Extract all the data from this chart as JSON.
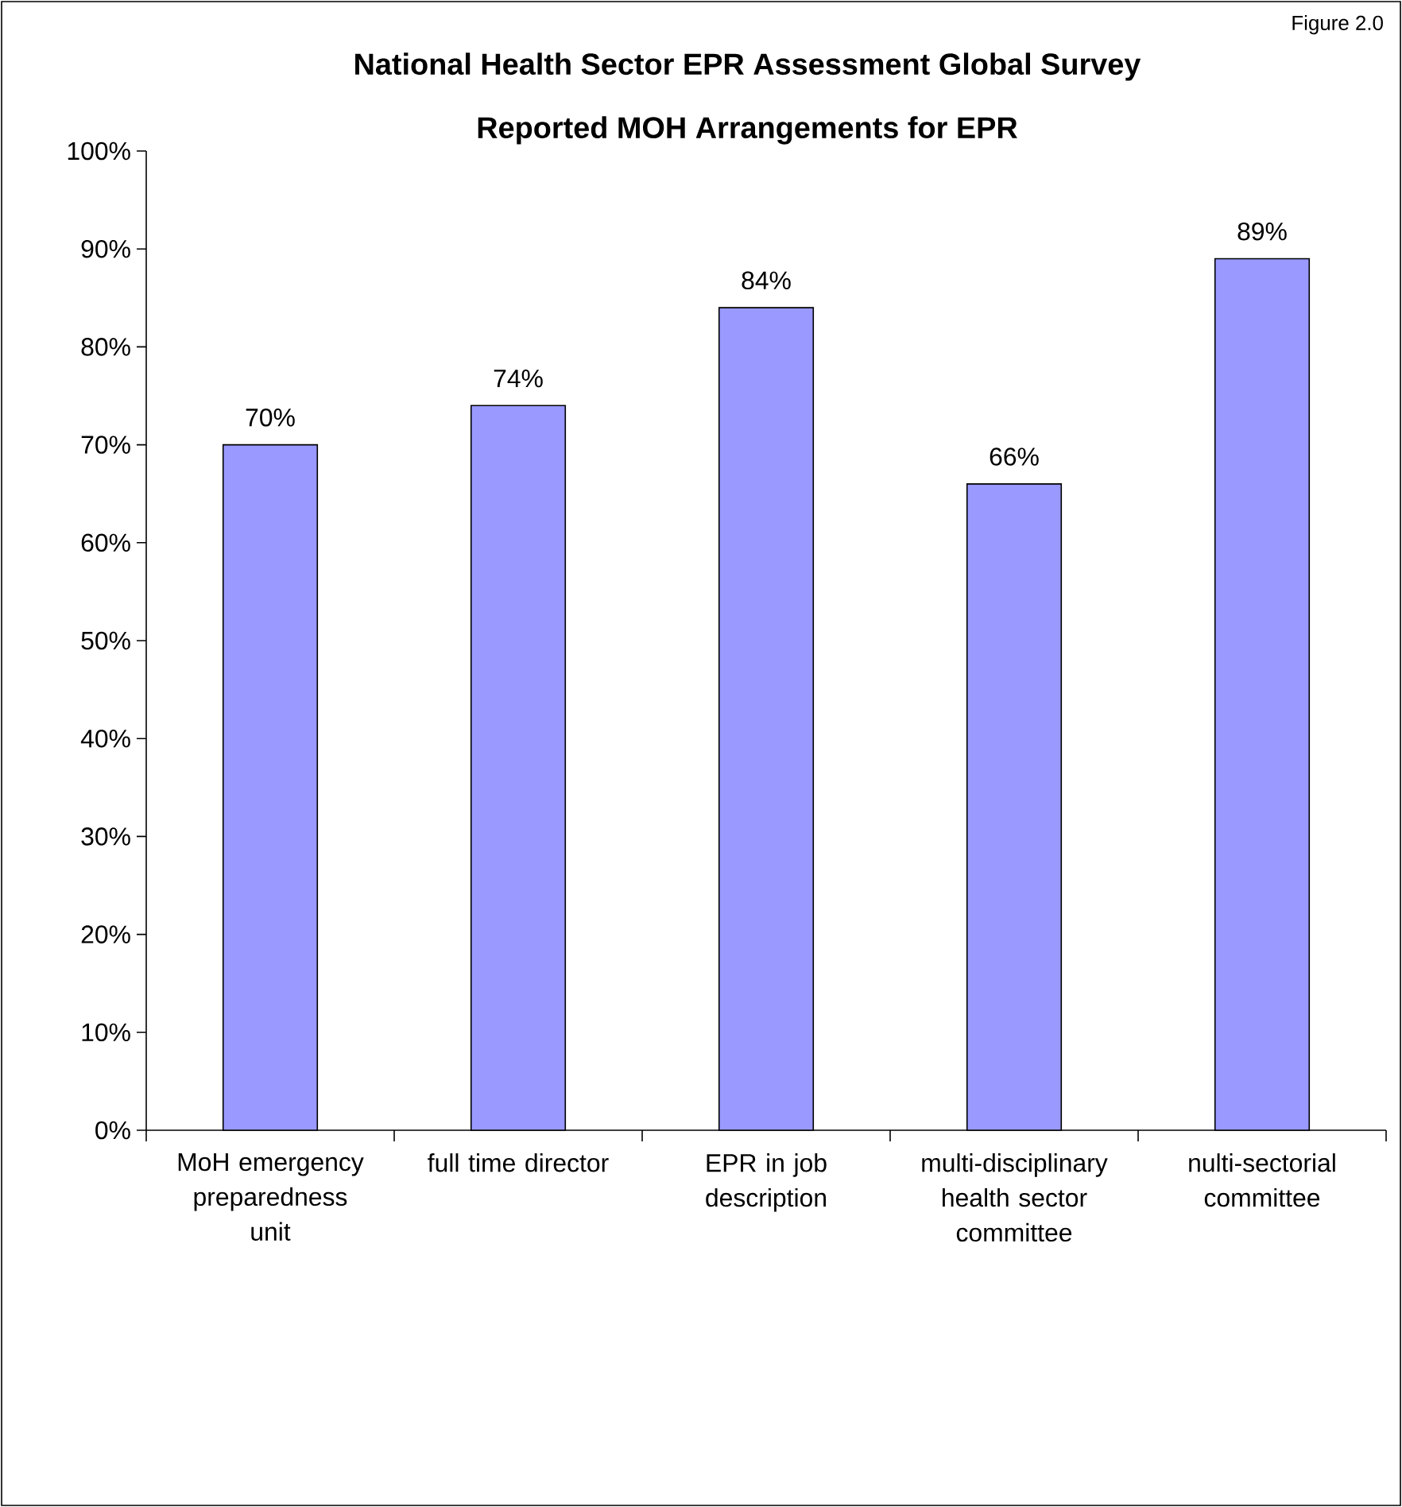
{
  "chart_data": {
    "type": "bar",
    "title": "National Health Sector EPR Assessment Global Survey",
    "subtitle": "Reported MOH Arrangements for EPR",
    "annotations": [
      "Figure 2.0"
    ],
    "categories": [
      "MoH emergency preparedness unit",
      "full time director",
      "EPR in job description",
      "multi-disciplinary health sector committee",
      "nulti-sectorial committee"
    ],
    "values": [
      70,
      74,
      84,
      66,
      89
    ],
    "value_labels": [
      "70%",
      "74%",
      "84%",
      "66%",
      "89%"
    ],
    "color": "#9999ff",
    "ylim": [
      0,
      100
    ],
    "yticks": [
      {
        "value": 0,
        "label": "0%"
      },
      {
        "value": 10,
        "label": "10%"
      },
      {
        "value": 20,
        "label": "20%"
      },
      {
        "value": 30,
        "label": "30%"
      },
      {
        "value": 40,
        "label": "40%"
      },
      {
        "value": 50,
        "label": "50%"
      },
      {
        "value": 60,
        "label": "60%"
      },
      {
        "value": 70,
        "label": "70%"
      },
      {
        "value": 80,
        "label": "80%"
      },
      {
        "value": 90,
        "label": "90%"
      },
      {
        "value": 100,
        "label": "100%"
      }
    ],
    "grid": false
  }
}
